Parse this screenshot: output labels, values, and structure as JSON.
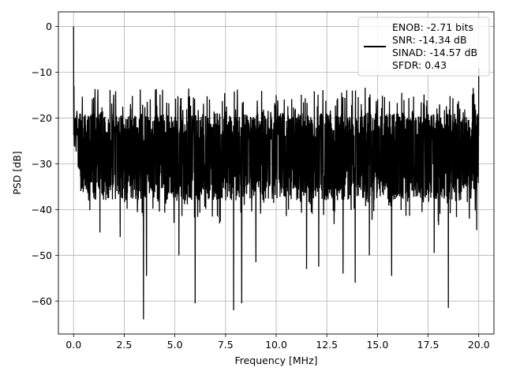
{
  "chart_data": {
    "type": "line",
    "title": "",
    "xlabel": "Frequency [MHz]",
    "ylabel": "PSD [dB]",
    "xlim": [
      -0.75,
      20.75
    ],
    "ylim": [
      -67.2,
      3.2
    ],
    "xticks": [
      0.0,
      2.5,
      5.0,
      7.5,
      10.0,
      12.5,
      15.0,
      17.5,
      20.0
    ],
    "xtick_labels": [
      "0.0",
      "2.5",
      "5.0",
      "7.5",
      "10.0",
      "12.5",
      "15.0",
      "17.5",
      "20.0"
    ],
    "yticks": [
      0,
      -10,
      -20,
      -30,
      -40,
      -50,
      -60
    ],
    "ytick_labels": [
      "0",
      "−10",
      "−20",
      "−30",
      "−40",
      "−50",
      "−60"
    ],
    "grid": true,
    "legend_position": "top-right",
    "series": [
      {
        "name": "ENOB: -2.71 bits\nSNR: -14.34 dB\nSINAD: -14.57 dB\nSFDR: 0.43",
        "color": "#000000",
        "x_range": [
          0.0,
          20.0
        ],
        "envelope": {
          "upper_db": -19,
          "lower_db": -38,
          "typical_peak_db": -14
        },
        "notable_points": [
          {
            "x": 0.0,
            "y": 0.0
          },
          {
            "x": 0.02,
            "y": -13.0
          },
          {
            "x": 0.1,
            "y": -22.0
          },
          {
            "x": 0.35,
            "y": -28.0
          },
          {
            "x": 1.3,
            "y": -45.0
          },
          {
            "x": 2.3,
            "y": -46.0
          },
          {
            "x": 3.45,
            "y": -64.0
          },
          {
            "x": 3.6,
            "y": -54.5
          },
          {
            "x": 5.2,
            "y": -50.0
          },
          {
            "x": 6.0,
            "y": -60.5
          },
          {
            "x": 7.9,
            "y": -62.0
          },
          {
            "x": 8.3,
            "y": -60.5
          },
          {
            "x": 9.0,
            "y": -51.5
          },
          {
            "x": 10.0,
            "y": -15.0
          },
          {
            "x": 11.5,
            "y": -53.0
          },
          {
            "x": 12.1,
            "y": -52.5
          },
          {
            "x": 13.3,
            "y": -54.0
          },
          {
            "x": 13.9,
            "y": -56.0
          },
          {
            "x": 14.6,
            "y": -50.0
          },
          {
            "x": 15.7,
            "y": -54.5
          },
          {
            "x": 16.2,
            "y": -14.5
          },
          {
            "x": 17.8,
            "y": -49.5
          },
          {
            "x": 18.5,
            "y": -61.5
          },
          {
            "x": 19.9,
            "y": -44.5
          },
          {
            "x": 20.0,
            "y": -9.0
          }
        ]
      }
    ]
  }
}
